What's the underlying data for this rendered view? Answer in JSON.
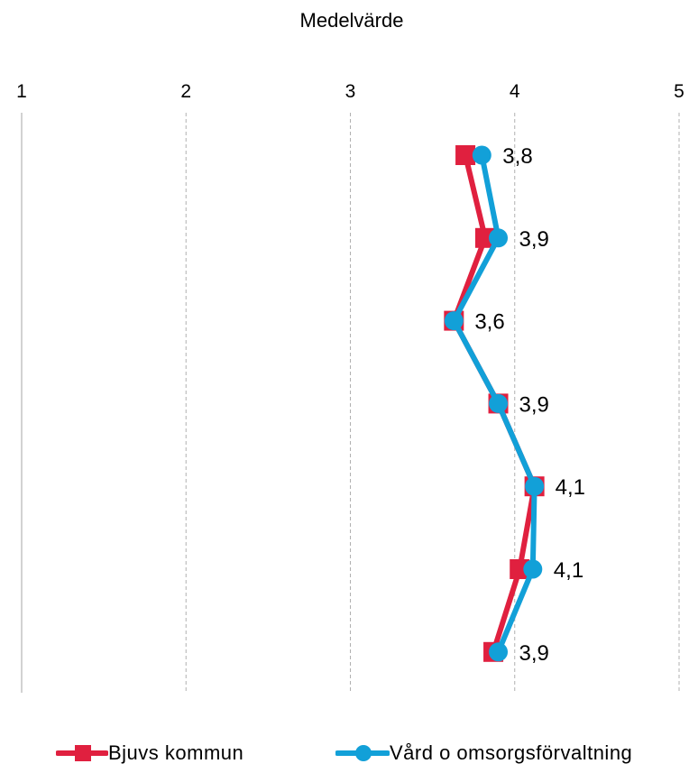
{
  "chart_data": {
    "type": "line",
    "orientation": "horizontal-value-axis",
    "title": "Medelvärde",
    "x_axis": {
      "min": 1,
      "max": 5,
      "ticks": [
        "1",
        "2",
        "3",
        "4",
        "5"
      ],
      "position": "top"
    },
    "categories": [
      "",
      "",
      "",
      "",
      "",
      "",
      ""
    ],
    "series": [
      {
        "name": "Bjuvs kommun",
        "marker": "square",
        "color": "#e0203f",
        "values": [
          3.7,
          3.82,
          3.63,
          3.9,
          4.12,
          4.03,
          3.87
        ]
      },
      {
        "name": "Vård o omsorgsförvaltning",
        "marker": "circle",
        "color": "#12a0d8",
        "values": [
          3.8,
          3.9,
          3.63,
          3.9,
          4.12,
          4.11,
          3.9
        ],
        "labels": [
          "3,8",
          "3,9",
          "3,6",
          "3,9",
          "4,1",
          "4,1",
          "3,9"
        ]
      }
    ],
    "grid": true,
    "legend": "bottom"
  }
}
